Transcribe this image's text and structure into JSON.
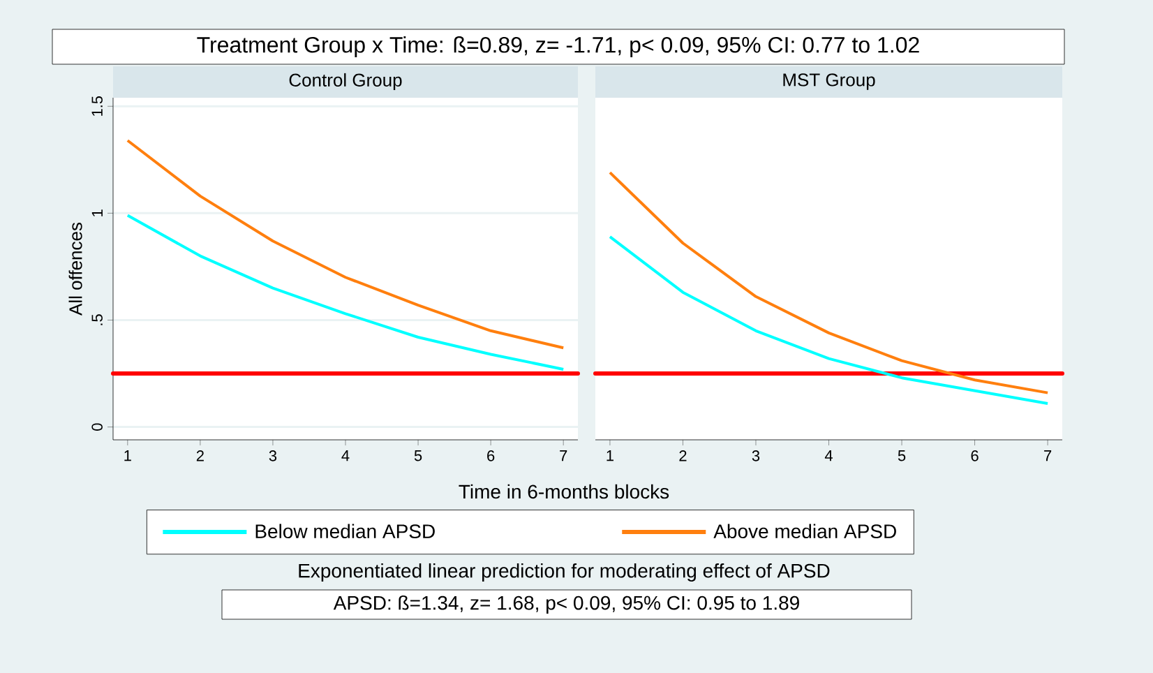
{
  "chart_data": [
    {
      "type": "line",
      "title": "Control Group",
      "xlabel": "Time in 6-months blocks",
      "ylabel": "All offences",
      "annotations": [
        "Treatment Group x Time: ß=0.89, z= -1.71, p< 0.09, 95% CI: 0.77 to 1.02",
        "Exponentiated linear prediction for moderating effect of APSD",
        "APSD: ß=1.34, z= 1.68, p< 0.09, 95% CI: 0.95 to 1.89"
      ],
      "x": [
        1,
        2,
        3,
        4,
        5,
        6,
        7
      ],
      "series": [
        {
          "name": "Below median APSD",
          "color": "#00ffff",
          "values": [
            0.99,
            0.8,
            0.65,
            0.53,
            0.42,
            0.34,
            0.27
          ]
        },
        {
          "name": "Above median APSD",
          "color": "#ff7f0e",
          "values": [
            1.34,
            1.08,
            0.87,
            0.7,
            0.57,
            0.45,
            0.37
          ]
        }
      ],
      "xlim": [
        0.8,
        7.2
      ],
      "ylim": [
        -0.06,
        1.54
      ],
      "xticks": [
        1,
        2,
        3,
        4,
        5,
        6,
        7
      ],
      "yticks": [
        0,
        {
          "value": 0.5,
          "label": ".5"
        },
        1,
        1.5
      ],
      "ref_lines": [
        {
          "axis": "y",
          "value": 0.25,
          "color": "#ff0000"
        }
      ],
      "grid": "y",
      "legend": "bottom",
      "line_style": "solid",
      "marker": "none"
    },
    {
      "type": "line",
      "title": "MST Group",
      "x": [
        1,
        2,
        3,
        4,
        5,
        6,
        7
      ],
      "series": [
        {
          "color": "#00ffff",
          "values": [
            0.89,
            0.63,
            0.45,
            0.32,
            0.23,
            0.17,
            0.11
          ]
        },
        {
          "color": "#ff7f0e",
          "values": [
            1.19,
            0.86,
            0.61,
            0.44,
            0.31,
            0.22,
            0.16
          ]
        }
      ],
      "xlim": [
        0.8,
        7.2
      ],
      "ylim": [
        -0.06,
        1.54
      ],
      "xticks": [
        1,
        2,
        3,
        4,
        5,
        6,
        7
      ],
      "yticks": [
        0,
        0.5,
        1,
        1.5
      ],
      "ref_lines": [
        {
          "axis": "y",
          "value": 0.25,
          "color": "#ff0000"
        }
      ],
      "grid": "y",
      "tick_labels": "x",
      "line_style": "solid",
      "marker": "none"
    }
  ]
}
